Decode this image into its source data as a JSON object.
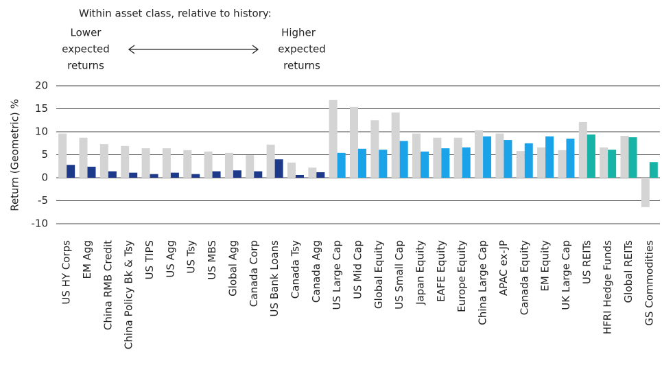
{
  "chart_data": {
    "type": "bar",
    "annotations": {
      "header": "Within asset class, relative to history:",
      "lower": [
        "Lower",
        "expected",
        "returns"
      ],
      "higher": [
        "Higher",
        "expected",
        "returns"
      ]
    },
    "ylabel": "Return (Geometric) %",
    "categories": [
      "US HY Corps",
      "EM Agg",
      "China RMB Credit",
      "China Policy Bk & Tsy",
      "US TIPS",
      "US Agg",
      "US Tsy",
      "US MBS",
      "Global Agg",
      "Canada Corp",
      "US Bank Loans",
      "Canada Tsy",
      "Canada Agg",
      "US Large Cap",
      "US Mid Cap",
      "Global Equity",
      "US Small Cap",
      "Japan Equity",
      "EAFE Equity",
      "Europe Equity",
      "China Large Cap",
      "APAC ex-JP",
      "Canada Equity",
      "EM Equity",
      "UK Large Cap",
      "US REITs",
      "HFRI Hedge Funds",
      "Global REITs",
      "GS Commodities"
    ],
    "series": [
      {
        "color": "#d4d4d4",
        "values": [
          9.6,
          8.7,
          7.3,
          6.9,
          6.4,
          6.4,
          6.0,
          5.7,
          5.4,
          4.9,
          7.2,
          3.3,
          2.2,
          16.9,
          15.4,
          12.5,
          14.2,
          9.6,
          8.7,
          8.7,
          10.3,
          9.6,
          5.8,
          6.6,
          6.0,
          12.1,
          6.6,
          9.1,
          -6.4
        ]
      },
      {
        "colors": [
          "#1d3a8a",
          "#1d3a8a",
          "#1d3a8a",
          "#1d3a8a",
          "#1d3a8a",
          "#1d3a8a",
          "#1d3a8a",
          "#1d3a8a",
          "#1d3a8a",
          "#1d3a8a",
          "#1d3a8a",
          "#1d3a8a",
          "#1d3a8a",
          "#1aa3e8",
          "#1aa3e8",
          "#1aa3e8",
          "#1aa3e8",
          "#1aa3e8",
          "#1aa3e8",
          "#1aa3e8",
          "#1aa3e8",
          "#1aa3e8",
          "#1aa3e8",
          "#1aa3e8",
          "#1aa3e8",
          "#16b3a6",
          "#16b3a6",
          "#16b3a6",
          "#16b3a6"
        ],
        "values": [
          2.8,
          2.4,
          1.4,
          1.1,
          0.8,
          1.1,
          0.8,
          1.4,
          1.6,
          1.4,
          4.0,
          0.6,
          1.2,
          5.4,
          6.3,
          6.1,
          8.0,
          5.7,
          6.4,
          6.6,
          9.0,
          8.2,
          7.5,
          9.0,
          8.5,
          9.4,
          6.1,
          8.8,
          3.4
        ]
      }
    ],
    "ylim": [
      -10,
      20
    ],
    "yticks": [
      -10,
      -5,
      0,
      5,
      10,
      15,
      20
    ],
    "grid": true
  }
}
